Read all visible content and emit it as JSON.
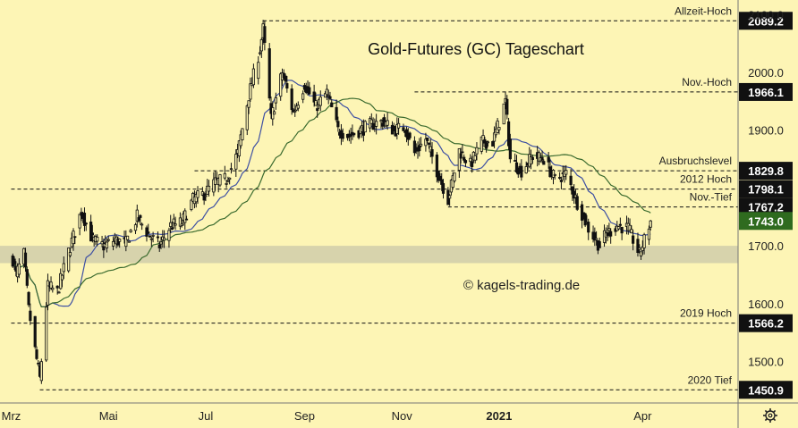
{
  "chart_data": {
    "type": "candlestick",
    "title": "Gold-Futures (GC) Tageschart",
    "watermark": "© kagels-trading.de",
    "ylim": [
      1440,
      2110
    ],
    "y_ticks": [
      {
        "value": 1500,
        "label": "1500.0"
      },
      {
        "value": 1600,
        "label": "1600.0"
      },
      {
        "value": 1700,
        "label": "1700.0"
      },
      {
        "value": 1900,
        "label": "1900.0"
      },
      {
        "value": 2000,
        "label": "2000.0"
      },
      {
        "value": 2100,
        "label": "2100.0"
      }
    ],
    "x_ticks": [
      {
        "date": "2020-03-01",
        "label": "Mrz"
      },
      {
        "date": "2020-05-01",
        "label": "Mai"
      },
      {
        "date": "2020-07-01",
        "label": "Jul"
      },
      {
        "date": "2020-09-01",
        "label": "Sep"
      },
      {
        "date": "2020-11-01",
        "label": "Nov"
      },
      {
        "date": "2021-01-01",
        "label": "2021",
        "bold": true
      },
      {
        "date": "2021-04-01",
        "label": "Apr"
      }
    ],
    "levels": [
      {
        "name": "Allzeit-Hoch",
        "value": 2089.2,
        "label": "2089.2",
        "start": "2020-08-06"
      },
      {
        "name": "Nov.-Hoch",
        "value": 1966.1,
        "label": "1966.1",
        "start": "2020-11-09"
      },
      {
        "name": "Ausbruchslevel",
        "value": 1829.8,
        "label": "1829.8",
        "start": "2020-06-24"
      },
      {
        "name": "2012 Hoch",
        "value": 1798.1,
        "label": "1798.1",
        "start": "2020-03-01"
      },
      {
        "name": "Nov.-Tief",
        "value": 1767.2,
        "label": "1767.2",
        "start": "2020-11-30"
      },
      {
        "name": "2019 Hoch",
        "value": 1566.2,
        "label": "1566.2",
        "start": "2020-03-01"
      },
      {
        "name": "2020 Tief",
        "value": 1450.9,
        "label": "1450.9",
        "start": "2020-03-19"
      }
    ],
    "last_price": {
      "value": 1743.0,
      "label": "1743.0"
    },
    "support_zone": [
      1670,
      1700
    ],
    "series": [
      {
        "date": "2020-03-01",
        "close": 1690
      },
      {
        "date": "2020-03-04",
        "close": 1650
      },
      {
        "date": "2020-03-09",
        "close": 1685
      },
      {
        "date": "2020-03-12",
        "close": 1590
      },
      {
        "date": "2020-03-16",
        "close": 1520
      },
      {
        "date": "2020-03-19",
        "close": 1470
      },
      {
        "date": "2020-03-24",
        "close": 1630
      },
      {
        "date": "2020-03-30",
        "close": 1620
      },
      {
        "date": "2020-04-06",
        "close": 1690
      },
      {
        "date": "2020-04-14",
        "close": 1760
      },
      {
        "date": "2020-04-21",
        "close": 1710
      },
      {
        "date": "2020-04-28",
        "close": 1700
      },
      {
        "date": "2020-05-05",
        "close": 1710
      },
      {
        "date": "2020-05-12",
        "close": 1705
      },
      {
        "date": "2020-05-19",
        "close": 1750
      },
      {
        "date": "2020-05-26",
        "close": 1720
      },
      {
        "date": "2020-06-02",
        "close": 1700
      },
      {
        "date": "2020-06-09",
        "close": 1735
      },
      {
        "date": "2020-06-16",
        "close": 1740
      },
      {
        "date": "2020-06-23",
        "close": 1780
      },
      {
        "date": "2020-06-30",
        "close": 1790
      },
      {
        "date": "2020-07-07",
        "close": 1810
      },
      {
        "date": "2020-07-14",
        "close": 1815
      },
      {
        "date": "2020-07-21",
        "close": 1860
      },
      {
        "date": "2020-07-28",
        "close": 1960
      },
      {
        "date": "2020-08-04",
        "close": 2040
      },
      {
        "date": "2020-08-06",
        "close": 2075
      },
      {
        "date": "2020-08-11",
        "close": 1920
      },
      {
        "date": "2020-08-18",
        "close": 2000
      },
      {
        "date": "2020-08-25",
        "close": 1930
      },
      {
        "date": "2020-09-01",
        "close": 1980
      },
      {
        "date": "2020-09-08",
        "close": 1940
      },
      {
        "date": "2020-09-15",
        "close": 1965
      },
      {
        "date": "2020-09-22",
        "close": 1900
      },
      {
        "date": "2020-09-29",
        "close": 1890
      },
      {
        "date": "2020-10-06",
        "close": 1900
      },
      {
        "date": "2020-10-13",
        "close": 1910
      },
      {
        "date": "2020-10-20",
        "close": 1915
      },
      {
        "date": "2020-10-27",
        "close": 1900
      },
      {
        "date": "2020-11-03",
        "close": 1905
      },
      {
        "date": "2020-11-09",
        "close": 1860
      },
      {
        "date": "2020-11-16",
        "close": 1885
      },
      {
        "date": "2020-11-23",
        "close": 1830
      },
      {
        "date": "2020-11-30",
        "close": 1780
      },
      {
        "date": "2020-12-07",
        "close": 1865
      },
      {
        "date": "2020-12-14",
        "close": 1840
      },
      {
        "date": "2020-12-21",
        "close": 1880
      },
      {
        "date": "2020-12-28",
        "close": 1880
      },
      {
        "date": "2021-01-05",
        "close": 1950
      },
      {
        "date": "2021-01-08",
        "close": 1850
      },
      {
        "date": "2021-01-15",
        "close": 1830
      },
      {
        "date": "2021-01-22",
        "close": 1855
      },
      {
        "date": "2021-01-29",
        "close": 1850
      },
      {
        "date": "2021-02-05",
        "close": 1815
      },
      {
        "date": "2021-02-12",
        "close": 1825
      },
      {
        "date": "2021-02-19",
        "close": 1775
      },
      {
        "date": "2021-02-26",
        "close": 1730
      },
      {
        "date": "2021-03-05",
        "close": 1700
      },
      {
        "date": "2021-03-09",
        "close": 1720
      },
      {
        "date": "2021-03-16",
        "close": 1735
      },
      {
        "date": "2021-03-23",
        "close": 1730
      },
      {
        "date": "2021-03-30",
        "close": 1685
      },
      {
        "date": "2021-04-06",
        "close": 1743
      }
    ]
  },
  "colors": {
    "background": "#fdf5b5",
    "zone": "#d3cfab",
    "candle": "#111111",
    "ma_fast": "#3d4fa3",
    "ma_slow": "#3b6b2f",
    "price_tag": "#111111",
    "last_tag": "#2f6b1f"
  },
  "icons": {
    "settings": "gear-icon"
  }
}
